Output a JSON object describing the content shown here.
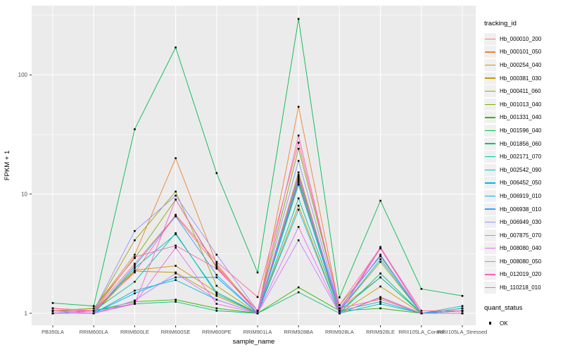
{
  "figure": {
    "background": "#FFFFFF",
    "panel_background": "#EBEBEB",
    "grid_color": "#FFFFFF",
    "tick_label_color": "#4D4D4D",
    "point_color": "#000000"
  },
  "legends": {
    "tracking": {
      "title": "tracking_id"
    },
    "quant": {
      "title": "quant_status",
      "entries": [
        {
          "label": "OK",
          "color": "#000000"
        }
      ]
    }
  },
  "chart_data": {
    "type": "line",
    "title": "",
    "xlabel": "sample_name",
    "ylabel": "FPKM + 1",
    "yscale": "log10",
    "ylim": [
      1,
      380
    ],
    "y_ticks": [
      1,
      10,
      100
    ],
    "y_minor_ticks": [
      3.162,
      31.62,
      316.2
    ],
    "grid": true,
    "legend_position": "right",
    "point_marker": {
      "shape": "square",
      "color": "#000000",
      "label": "OK"
    },
    "categories": [
      "PB350LA",
      "RRIM600LA",
      "RRIM600LE",
      "RRIM600SE",
      "RRIM600PE",
      "RRIM901LA",
      "RRIM928BA",
      "RRIM928LA",
      "RRIM928LE",
      "RRII105LA_Control",
      "RRII105LA_Stressed"
    ],
    "series": [
      {
        "name": "Hb_000010_200",
        "color": "#F8766D",
        "values": [
          1.1,
          1.05,
          2.6,
          6.6,
          2.5,
          1.05,
          13.5,
          1.05,
          3.5,
          1.0,
          1.05
        ]
      },
      {
        "name": "Hb_000101_050",
        "color": "#EA8331",
        "values": [
          1.05,
          1.1,
          3.1,
          20.0,
          2.6,
          1.0,
          54.0,
          1.1,
          2.0,
          1.0,
          1.0
        ]
      },
      {
        "name": "Hb_000254_040",
        "color": "#D89000",
        "values": [
          1.0,
          1.05,
          2.3,
          2.5,
          1.5,
          1.0,
          12.5,
          1.0,
          1.35,
          1.0,
          1.0
        ]
      },
      {
        "name": "Hb_000381_030",
        "color": "#C09B00",
        "values": [
          1.0,
          1.0,
          2.26,
          2.2,
          1.4,
          1.0,
          8.0,
          1.0,
          1.68,
          1.0,
          1.05
        ]
      },
      {
        "name": "Hb_000411_060",
        "color": "#A3A500",
        "values": [
          1.0,
          1.05,
          4.1,
          10.5,
          1.7,
          1.0,
          15.2,
          1.05,
          2.7,
          1.0,
          1.05
        ]
      },
      {
        "name": "Hb_001013_040",
        "color": "#7CAE00",
        "values": [
          1.05,
          1.1,
          2.9,
          9.0,
          2.4,
          1.05,
          24.0,
          1.17,
          3.0,
          1.0,
          1.05
        ]
      },
      {
        "name": "Hb_001331_040",
        "color": "#39B600",
        "values": [
          1.05,
          1.05,
          1.25,
          1.3,
          1.1,
          1.0,
          1.65,
          1.05,
          1.1,
          1.0,
          1.05
        ]
      },
      {
        "name": "Hb_001596_040",
        "color": "#00BB4E",
        "values": [
          1.22,
          1.15,
          35.0,
          170.0,
          15.0,
          2.2,
          295.0,
          1.36,
          8.8,
          1.6,
          1.4
        ]
      },
      {
        "name": "Hb_001856_060",
        "color": "#00BF7D",
        "values": [
          1.0,
          1.05,
          1.2,
          1.25,
          1.05,
          1.0,
          1.5,
          1.0,
          2.16,
          1.0,
          1.0
        ]
      },
      {
        "name": "Hb_002171_070",
        "color": "#00C1A3",
        "values": [
          1.0,
          1.05,
          1.84,
          4.7,
          1.45,
          1.0,
          9.2,
          1.05,
          2.0,
          1.0,
          1.1
        ]
      },
      {
        "name": "Hb_002542_090",
        "color": "#00BFC4",
        "values": [
          1.0,
          1.0,
          2.4,
          4.6,
          1.5,
          1.0,
          13.0,
          1.05,
          1.25,
          1.0,
          1.15
        ]
      },
      {
        "name": "Hb_006452_050",
        "color": "#00BAE0",
        "values": [
          1.0,
          1.0,
          1.55,
          1.9,
          1.3,
          1.0,
          7.4,
          1.0,
          1.2,
          1.0,
          1.1
        ]
      },
      {
        "name": "Hb_006919_010",
        "color": "#00B0F6",
        "values": [
          1.0,
          1.0,
          1.47,
          2.0,
          2.0,
          1.0,
          12.0,
          1.05,
          2.84,
          1.0,
          1.05
        ]
      },
      {
        "name": "Hb_006938_010",
        "color": "#35A2FF",
        "values": [
          1.05,
          1.0,
          2.5,
          6.5,
          2.1,
          1.0,
          14.0,
          1.1,
          3.05,
          1.0,
          1.05
        ]
      },
      {
        "name": "Hb_006949_030",
        "color": "#9590FF",
        "values": [
          1.0,
          1.05,
          4.9,
          9.7,
          3.1,
          1.05,
          19.0,
          1.1,
          3.1,
          1.0,
          1.0
        ]
      },
      {
        "name": "Hb_007875_070",
        "color": "#C77CFF",
        "values": [
          1.0,
          1.0,
          1.28,
          2.16,
          1.3,
          1.0,
          4.1,
          1.0,
          1.37,
          1.0,
          1.0
        ]
      },
      {
        "name": "Hb_008080_040",
        "color": "#E76BF3",
        "values": [
          1.0,
          1.0,
          1.22,
          3.55,
          1.2,
          1.0,
          5.3,
          1.0,
          3.5,
          1.0,
          1.0
        ]
      },
      {
        "name": "Hb_008080_050",
        "color": "#FA62DB",
        "values": [
          1.05,
          1.0,
          1.2,
          9.0,
          2.45,
          1.0,
          14.5,
          1.05,
          3.6,
          1.0,
          1.0
        ]
      },
      {
        "name": "Hb_012019_020",
        "color": "#FF62BC",
        "values": [
          1.05,
          1.05,
          2.96,
          3.7,
          2.37,
          1.05,
          31.0,
          1.1,
          1.31,
          1.0,
          1.0
        ]
      },
      {
        "name": "Hb_110218_010",
        "color": "#FF6A98",
        "values": [
          1.1,
          1.05,
          2.2,
          6.7,
          2.7,
          1.37,
          27.0,
          1.17,
          3.55,
          1.05,
          1.05
        ]
      }
    ]
  }
}
